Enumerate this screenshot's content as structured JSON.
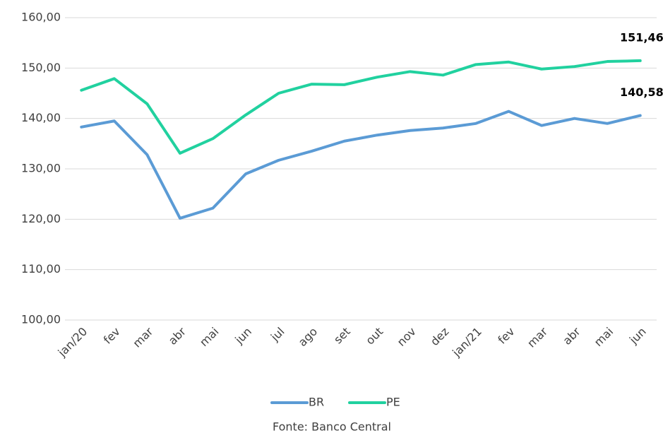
{
  "chart_data": {
    "type": "line",
    "categories": [
      "jan/20",
      "fev",
      "mar",
      "abr",
      "mai",
      "jun",
      "jul",
      "ago",
      "set",
      "out",
      "nov",
      "dez",
      "jan/21",
      "fev",
      "mar",
      "abr",
      "mai",
      "jun"
    ],
    "series": [
      {
        "name": "BR",
        "color": "#5b9bd5",
        "values": [
          138.3,
          139.5,
          132.8,
          120.2,
          122.2,
          129.0,
          131.7,
          133.5,
          135.5,
          136.7,
          137.6,
          138.1,
          139.0,
          141.4,
          138.6,
          140.0,
          139.0,
          140.58
        ],
        "value_labels": [
          null,
          null,
          null,
          null,
          null,
          null,
          null,
          null,
          null,
          null,
          null,
          null,
          null,
          null,
          null,
          null,
          null,
          "140,58"
        ]
      },
      {
        "name": "PE",
        "color": "#21d19f",
        "values": [
          145.6,
          147.9,
          142.9,
          133.1,
          136.0,
          140.7,
          145.0,
          146.8,
          146.7,
          148.2,
          149.3,
          148.6,
          150.7,
          151.2,
          149.8,
          150.3,
          151.3,
          151.46
        ],
        "value_labels": [
          null,
          null,
          null,
          null,
          null,
          null,
          null,
          null,
          null,
          null,
          null,
          null,
          null,
          null,
          null,
          null,
          null,
          "151,46"
        ]
      }
    ],
    "ylim": [
      100,
      160
    ],
    "yticks": [
      {
        "value": 100,
        "label": "100,00"
      },
      {
        "value": 110,
        "label": "110,00"
      },
      {
        "value": 120,
        "label": "120,00"
      },
      {
        "value": 130,
        "label": "130,00"
      },
      {
        "value": 140,
        "label": "140,00"
      },
      {
        "value": 150,
        "label": "150,00"
      },
      {
        "value": 160,
        "label": "160,00"
      }
    ],
    "grid": true,
    "legend": "bottom",
    "source": "Fonte: Banco Central"
  }
}
